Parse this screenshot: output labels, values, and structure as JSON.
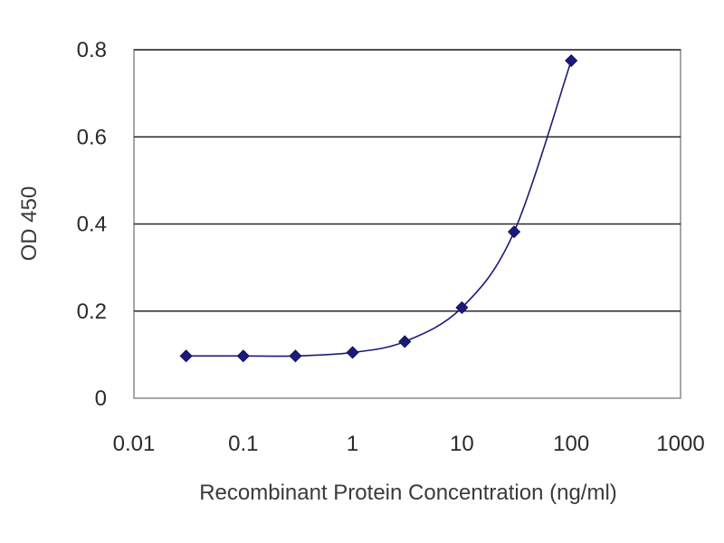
{
  "chart_data": {
    "type": "scatter",
    "title": "",
    "xlabel": "Recombinant Protein Concentration (ng/ml)",
    "ylabel": "OD 450",
    "x_scale": "log",
    "xlim": [
      0.01,
      1000
    ],
    "ylim": [
      0,
      0.8
    ],
    "x_ticks": [
      0.01,
      0.1,
      1,
      10,
      100,
      1000
    ],
    "x_tick_labels": [
      "0.01",
      "0.1",
      "1",
      "10",
      "100",
      "1000"
    ],
    "y_ticks": [
      0,
      0.2,
      0.4,
      0.6,
      0.8
    ],
    "y_tick_labels": [
      "0",
      "0.2",
      "0.4",
      "0.6",
      "0.8"
    ],
    "grid": "horizontal",
    "legend": "none",
    "series": [
      {
        "x": [
          0.03,
          0.1,
          0.3,
          1,
          3,
          10,
          30,
          100
        ],
        "y": [
          0.097,
          0.097,
          0.097,
          0.105,
          0.13,
          0.208,
          0.382,
          0.775
        ],
        "color": "#1a1a7a",
        "marker": "diamond",
        "fit_line": "smooth"
      }
    ],
    "colors": {
      "series": "#1a1a7a",
      "gridline": "#2a2a2a",
      "plot_border": "#8a8a8a"
    }
  }
}
